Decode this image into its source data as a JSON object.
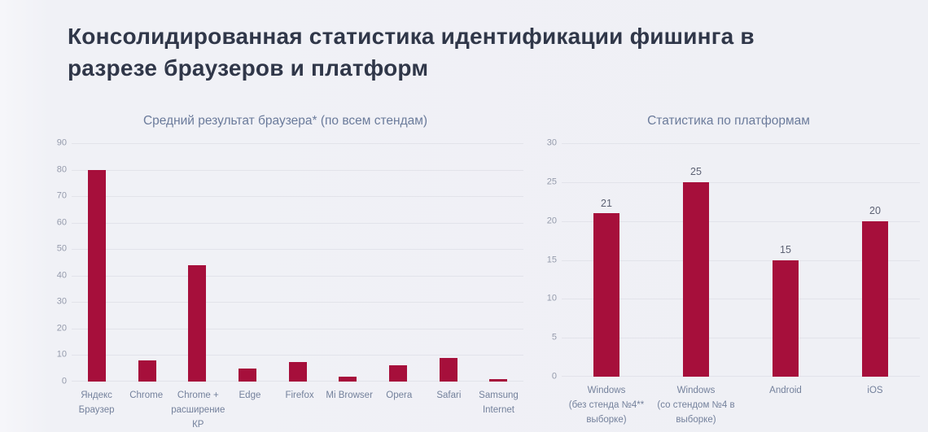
{
  "title": "Консолидированная статистика идентификации фишинга в разрезе браузеров и платформ",
  "colors": {
    "background": "#f0f1f5",
    "bar": "#a60f3b",
    "title_text": "#303749",
    "chart_title_text": "#6b7b9b",
    "tick_label": "#959bac",
    "category_label": "#74819c",
    "value_label": "#5d6274",
    "gridline": "#e2e3ea"
  },
  "chart_data": [
    {
      "type": "bar",
      "title": "Средний результат браузера* (по всем стендам)",
      "categories": [
        "Яндекс\nБраузер",
        "Chrome",
        "Chrome +\nрасширение\nКР",
        "Edge",
        "Firefox",
        "Mi Browser",
        "Opera",
        "Safari",
        "Samsung\nInternet"
      ],
      "values": [
        80,
        8,
        44,
        5,
        7.5,
        2,
        6,
        9,
        1
      ],
      "xlabel": "",
      "ylabel": "",
      "ylim": [
        0,
        90
      ],
      "ytick_step": 10,
      "grid": true,
      "show_value_labels": false,
      "legend": "none"
    },
    {
      "type": "bar",
      "title": "Статистика по платформам",
      "categories": [
        "Windows\n(без стенда №4**\nвыборке)",
        "Windows\n(со стендом №4 в\nвыборке)",
        "Android",
        "iOS"
      ],
      "values": [
        21,
        25,
        15,
        20
      ],
      "xlabel": "",
      "ylabel": "",
      "ylim": [
        0,
        30
      ],
      "ytick_step": 5,
      "grid": true,
      "show_value_labels": true,
      "legend": "none"
    }
  ]
}
